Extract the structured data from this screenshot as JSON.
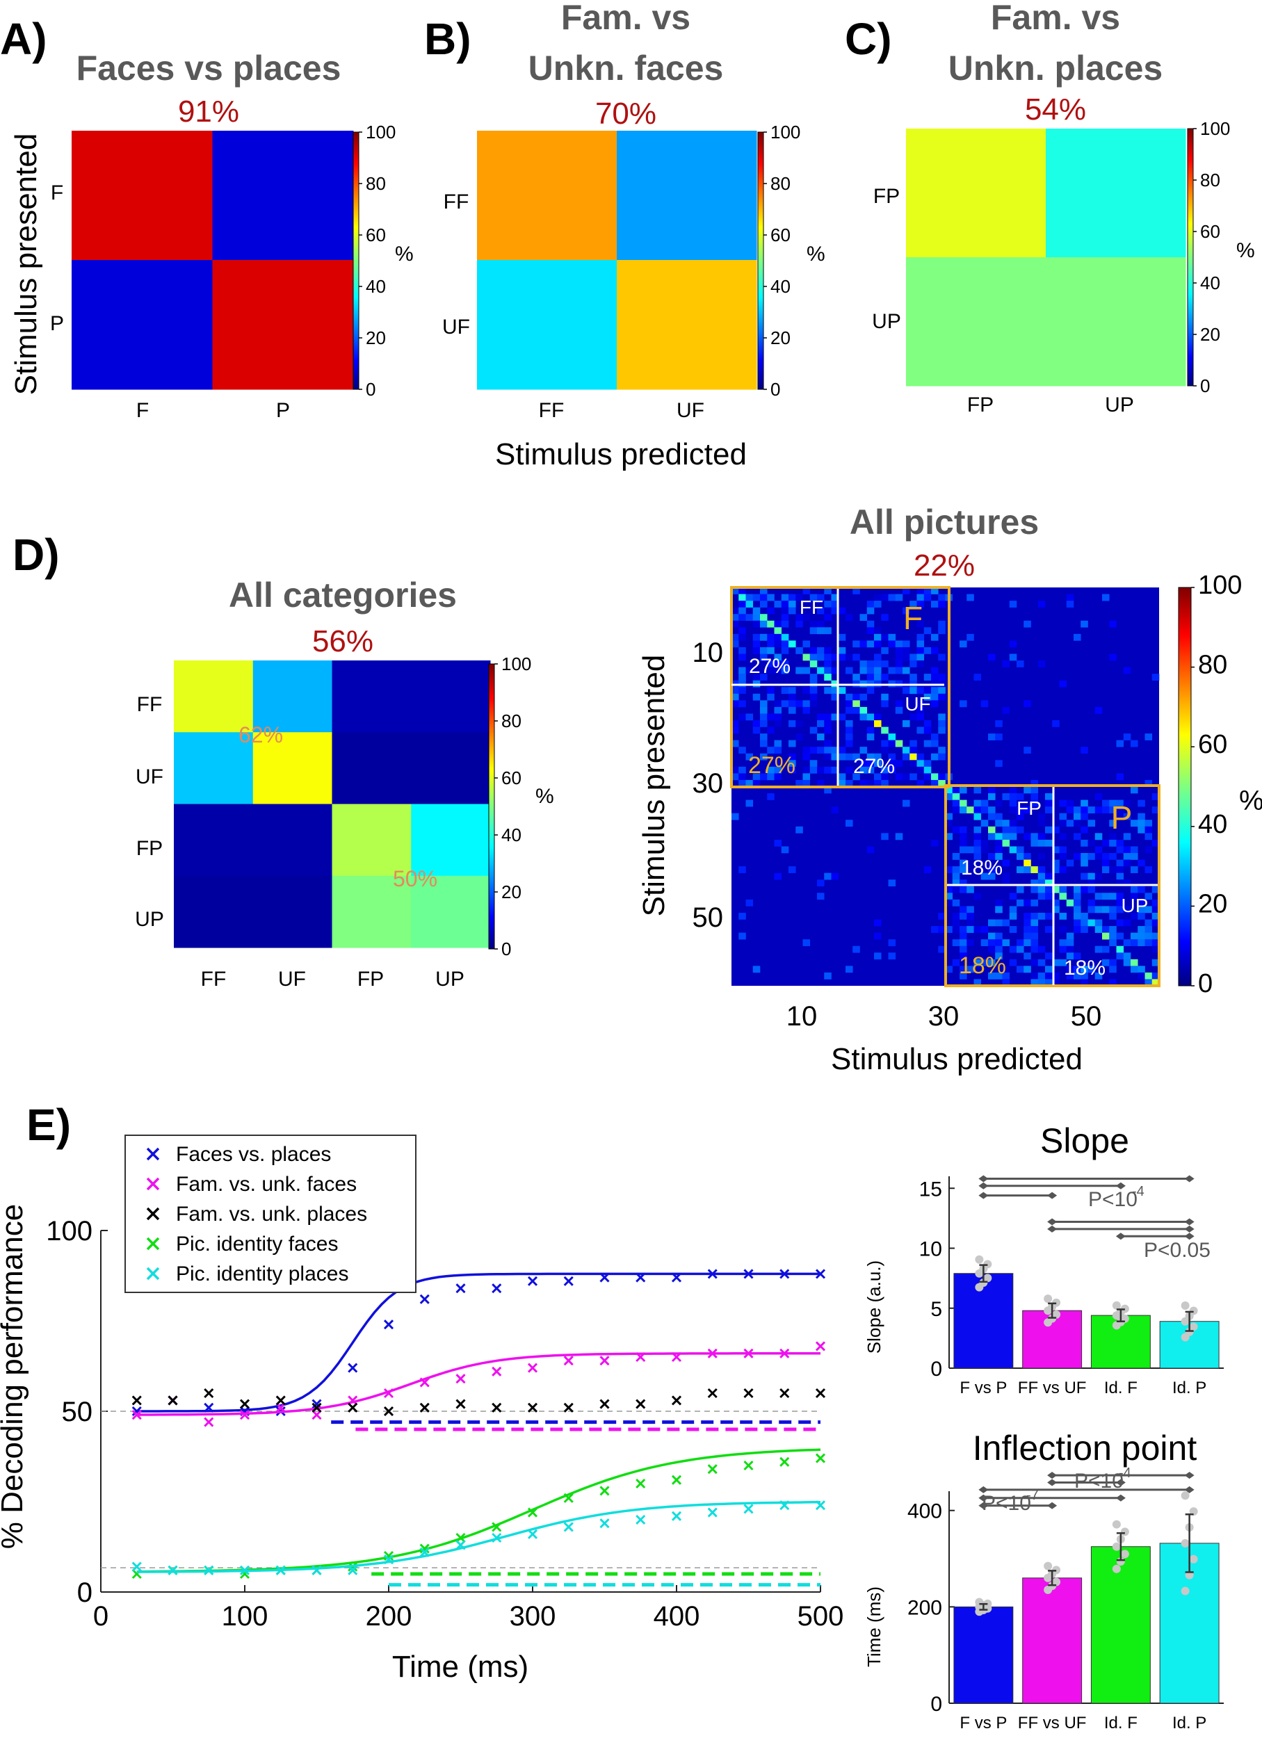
{
  "panel_letters": [
    "A)",
    "B)",
    "C)",
    "D)",
    "E)"
  ],
  "colorbar": {
    "label": "%",
    "ticks": [
      0,
      20,
      40,
      60,
      80,
      100
    ]
  },
  "chart_data": [
    {
      "type": "heatmap",
      "id": "A",
      "title": "Faces vs places",
      "accuracy": "91%",
      "ylabel": "Stimulus presented",
      "xlabel": "",
      "rows": [
        "F",
        "P"
      ],
      "cols": [
        "F",
        "P"
      ],
      "values": [
        [
          91,
          9
        ],
        [
          9,
          91
        ]
      ]
    },
    {
      "type": "heatmap",
      "id": "B",
      "title": [
        "Fam. vs",
        "Unkn. faces"
      ],
      "accuracy": "70%",
      "xlabel": "Stimulus predicted",
      "rows": [
        "FF",
        "UF"
      ],
      "cols": [
        "FF",
        "UF"
      ],
      "values": [
        [
          72,
          28
        ],
        [
          35,
          68
        ]
      ]
    },
    {
      "type": "heatmap",
      "id": "C",
      "title": [
        "Fam. vs",
        "Unkn. places"
      ],
      "accuracy": "54%",
      "rows": [
        "FP",
        "UP"
      ],
      "cols": [
        "FP",
        "UP"
      ],
      "values": [
        [
          60,
          40
        ],
        [
          50,
          50
        ]
      ]
    },
    {
      "type": "heatmap",
      "id": "D1",
      "title": "All categories",
      "accuracy": "56%",
      "rows": [
        "FF",
        "UF",
        "FP",
        "UP"
      ],
      "cols": [
        "FF",
        "UF",
        "FP",
        "UP"
      ],
      "values": [
        [
          60,
          30,
          5,
          5
        ],
        [
          32,
          62,
          3,
          3
        ],
        [
          4,
          4,
          55,
          37
        ],
        [
          3,
          3,
          50,
          48
        ]
      ],
      "annotations": [
        "62%",
        "50%"
      ]
    },
    {
      "type": "heatmap",
      "id": "D2",
      "title": "All pictures",
      "accuracy": "22%",
      "ylabel": "Stimulus presented",
      "xlabel": "Stimulus predicted",
      "n_pictures": 60,
      "ticks": [
        10,
        30,
        50
      ],
      "colorbar_ticks": [
        0,
        20,
        40,
        60,
        80,
        100
      ],
      "block_labels": {
        "big_faces": "F",
        "big_places": "P",
        "ff": "FF",
        "uf": "UF",
        "fp": "FP",
        "up": "UP"
      },
      "block_accuracies": {
        "ff": "27%",
        "uf": "27%",
        "faces_between": "27%",
        "fp": "18%",
        "up": "18%",
        "places_between": "18%"
      }
    },
    {
      "type": "line",
      "id": "E",
      "xlabel": "Time (ms)",
      "ylabel": "% Decoding performance",
      "xlim": [
        0,
        500
      ],
      "ylim": [
        0,
        100
      ],
      "xticks": [
        0,
        100,
        200,
        300,
        400,
        500
      ],
      "yticks": [
        0,
        50,
        100
      ],
      "chance_levels": [
        50,
        6.7
      ],
      "x": [
        25,
        50,
        75,
        100,
        125,
        150,
        175,
        200,
        225,
        250,
        275,
        300,
        325,
        350,
        375,
        400,
        425,
        450,
        475,
        500
      ],
      "series": [
        {
          "name": "Faces vs. places",
          "color": "#1010dd",
          "values": [
            50,
            53,
            51,
            50,
            50,
            52,
            62,
            74,
            81,
            84,
            84,
            86,
            86,
            87,
            87,
            87,
            88,
            88,
            88,
            88
          ],
          "fit": {
            "base": 50,
            "top": 88,
            "mid": 175,
            "scale": 16
          },
          "sig_from": 160,
          "sig_y": 47
        },
        {
          "name": "Fam. vs. unk. faces",
          "color": "#ee11ee",
          "values": [
            49,
            53,
            47,
            49,
            51,
            49,
            53,
            55,
            58,
            59,
            61,
            62,
            64,
            64,
            65,
            65,
            66,
            66,
            66,
            68
          ],
          "fit": {
            "base": 49,
            "top": 66,
            "mid": 215,
            "scale": 30
          },
          "sig_from": 177,
          "sig_y": 45
        },
        {
          "name": "Fam. vs. unk. places",
          "color": "#000000",
          "values": [
            53,
            53,
            55,
            52,
            53,
            51,
            51,
            50,
            51,
            52,
            51,
            51,
            51,
            52,
            52,
            53,
            55,
            55,
            55,
            55
          ]
        },
        {
          "name": "Pic. identity faces",
          "color": "#11dd11",
          "values": [
            5,
            6,
            6,
            5,
            6,
            6,
            7,
            10,
            12,
            15,
            18,
            22,
            26,
            28,
            30,
            31,
            34,
            35,
            36,
            37
          ],
          "fit": {
            "base": 5.5,
            "top": 40,
            "mid": 300,
            "scale": 50
          },
          "sig_from": 188,
          "sig_y": 5
        },
        {
          "name": "Pic. identity places",
          "color": "#11dddd",
          "values": [
            7,
            6,
            6,
            6,
            6,
            6,
            6,
            9,
            11,
            13,
            15,
            16,
            18,
            19,
            20,
            21,
            22,
            23,
            24,
            24
          ],
          "fit": {
            "base": 5.5,
            "top": 25,
            "mid": 280,
            "scale": 45
          },
          "sig_from": 200,
          "sig_y": 2
        }
      ]
    },
    {
      "type": "bar",
      "id": "E-slope",
      "title": "Slope",
      "ylabel": "Slope (a.u.)",
      "categories": [
        "F vs P",
        "FF vs UF",
        "Id. F",
        "Id. P"
      ],
      "values": [
        7.9,
        4.8,
        4.4,
        3.9
      ],
      "errors": [
        0.7,
        0.6,
        0.5,
        0.8
      ],
      "colors": [
        "#0a0aee",
        "#ee11ee",
        "#11ee11",
        "#11eeee"
      ],
      "ylim": [
        0,
        16
      ],
      "yticks": [
        0,
        5,
        10,
        15
      ],
      "sig_lines": [
        {
          "from": 0,
          "to": 3,
          "y": 15.8
        },
        {
          "from": 0,
          "to": 2,
          "y": 15.2
        },
        {
          "from": 0,
          "to": 1,
          "y": 14.4
        },
        {
          "from": 1,
          "to": 3,
          "y": 12.2
        },
        {
          "from": 1,
          "to": 3,
          "y": 11.6
        },
        {
          "from": 2,
          "to": 3,
          "y": 11.0
        }
      ],
      "annotations": [
        "P<10",
        "-4",
        "P<0.05"
      ]
    },
    {
      "type": "bar",
      "id": "E-inflection",
      "title": "Inflection point",
      "ylabel": "Time (ms)",
      "categories": [
        "F vs P",
        "FF vs UF",
        "Id. F",
        "Id. P"
      ],
      "values": [
        200,
        260,
        325,
        332
      ],
      "errors": [
        6,
        15,
        28,
        60
      ],
      "colors": [
        "#0a0aee",
        "#ee11ee",
        "#11ee11",
        "#11eeee"
      ],
      "ylim": [
        0,
        440
      ],
      "yticks": [
        0,
        200,
        400
      ],
      "sig_lines": [
        {
          "from": 0,
          "to": 3,
          "y": 443
        },
        {
          "from": 0,
          "to": 2,
          "y": 426
        },
        {
          "from": 0,
          "to": 1,
          "y": 410
        },
        {
          "from": 1,
          "to": 3,
          "y": 473
        },
        {
          "from": 1,
          "to": 2,
          "y": 458
        }
      ],
      "annotations": [
        "P<10",
        "-7",
        "P<10",
        "-4"
      ]
    }
  ]
}
